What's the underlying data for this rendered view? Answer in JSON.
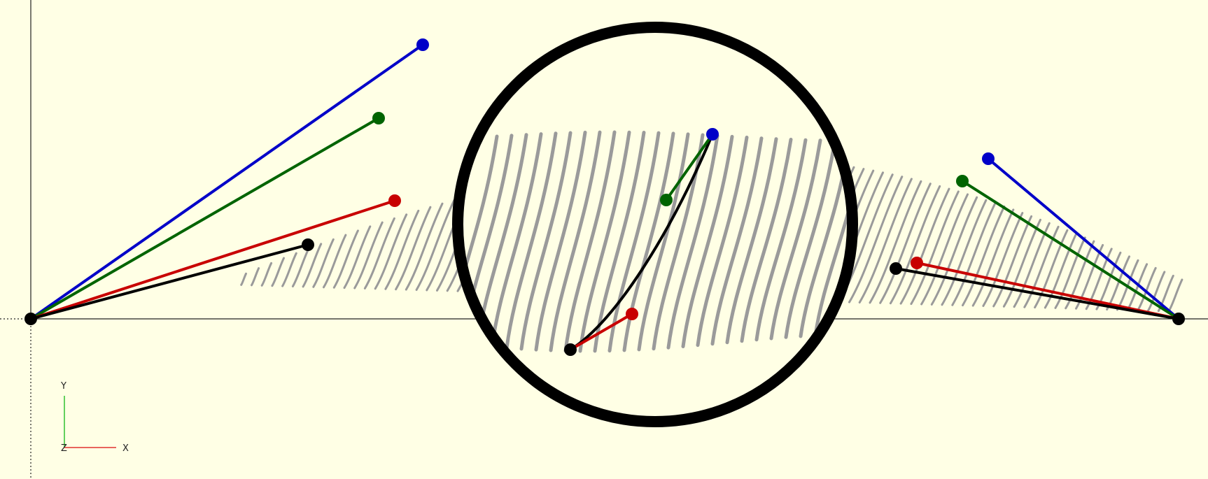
{
  "scene": {
    "background": "#ffffe5",
    "axes_gizmo": {
      "x_label": "X",
      "y_label": "Y",
      "z_label": "Z"
    },
    "colors": {
      "blue": "#0000c8",
      "green": "#006400",
      "red": "#c80000",
      "black": "#000000",
      "hatch": "#9a9a9a",
      "axis_x": "#e03030",
      "axis_y": "#30c030"
    },
    "objects": [
      "left-control-fan",
      "right-control-fan",
      "center-zoom-lens",
      "hatched-curve-band"
    ]
  }
}
